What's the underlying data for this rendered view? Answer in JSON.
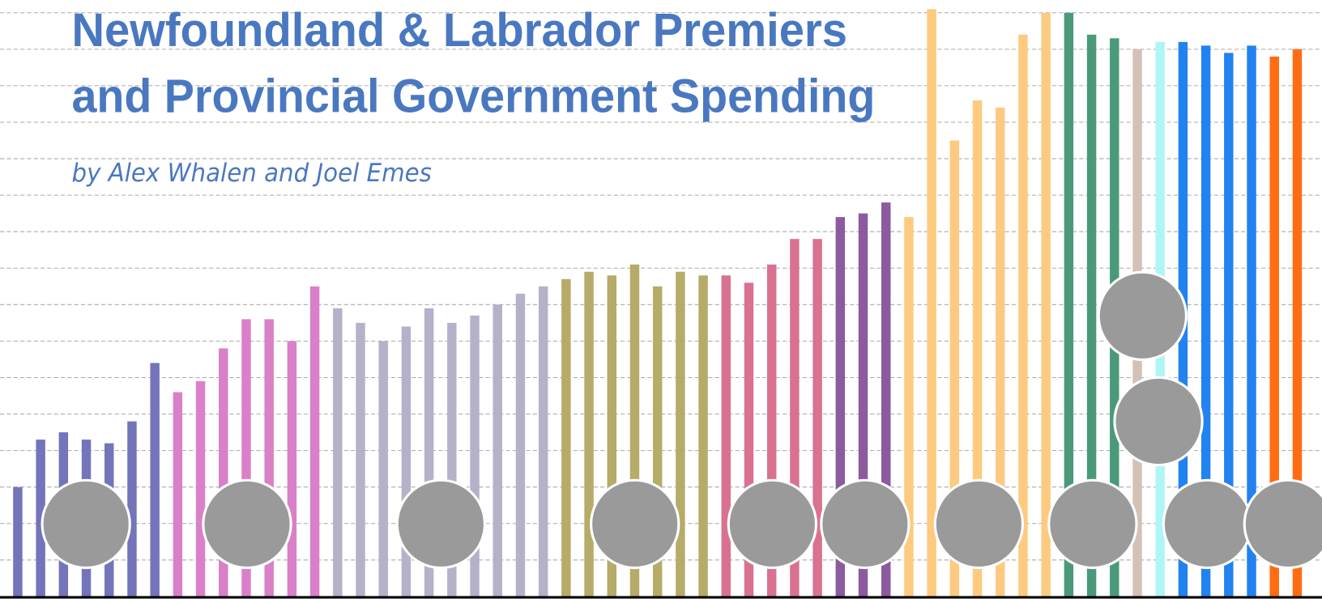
{
  "chart_data": {
    "type": "bar",
    "title": [
      "Newfoundland & Labrador Premiers",
      "and Provincial Government Spending"
    ],
    "subtitle": "by Alex Whalen and Joel Emes",
    "values": [
      3.0,
      4.3,
      4.5,
      4.3,
      4.2,
      4.8,
      6.4,
      5.6,
      5.9,
      6.8,
      7.6,
      7.6,
      7.0,
      8.5,
      7.9,
      7.5,
      7.0,
      7.4,
      7.9,
      7.5,
      7.7,
      8.0,
      8.3,
      8.5,
      8.7,
      8.9,
      8.8,
      9.1,
      8.5,
      8.9,
      8.8,
      8.8,
      8.6,
      9.1,
      9.8,
      9.8,
      10.4,
      10.5,
      10.8,
      10.4,
      16.1,
      12.5,
      13.6,
      13.4,
      15.4,
      16.0,
      16.0,
      15.4,
      15.3,
      15.0,
      15.2,
      15.2,
      15.1,
      14.9,
      15.1,
      14.8,
      15.0
    ],
    "colors": [
      "#7474ba",
      "#7474ba",
      "#7474ba",
      "#7474ba",
      "#7474ba",
      "#7474ba",
      "#7474ba",
      "#da80c8",
      "#da80c8",
      "#da80c8",
      "#da80c8",
      "#da80c8",
      "#da80c8",
      "#da80c8",
      "#b4b1c9",
      "#b4b1c9",
      "#b4b1c9",
      "#b4b1c9",
      "#b4b1c9",
      "#b4b1c9",
      "#b4b1c9",
      "#b4b1c9",
      "#b4b1c9",
      "#b4b1c9",
      "#b6ab68",
      "#b6ab68",
      "#b6ab68",
      "#b6ab68",
      "#b6ab68",
      "#b6ab68",
      "#b6ab68",
      "#d87290",
      "#d87290",
      "#d87290",
      "#d87290",
      "#d87290",
      "#8c5a9e",
      "#8c5a9e",
      "#8c5a9e",
      "#fdca80",
      "#fdca80",
      "#fdca80",
      "#fdca80",
      "#fdca80",
      "#fdca80",
      "#fdca80",
      "#4a9a7a",
      "#4a9a7a",
      "#4a9a7a",
      "#d4c1b6",
      "#aef6f6",
      "#2282f0",
      "#2282f0",
      "#2282f0",
      "#2282f0",
      "#ff6c12",
      "#ff6c12"
    ],
    "ylim": [
      0,
      16.35
    ],
    "yticks": [
      1,
      2,
      3,
      4,
      5,
      6,
      7,
      8,
      9,
      10,
      11,
      12,
      13,
      14,
      15,
      16
    ],
    "grid": true
  }
}
